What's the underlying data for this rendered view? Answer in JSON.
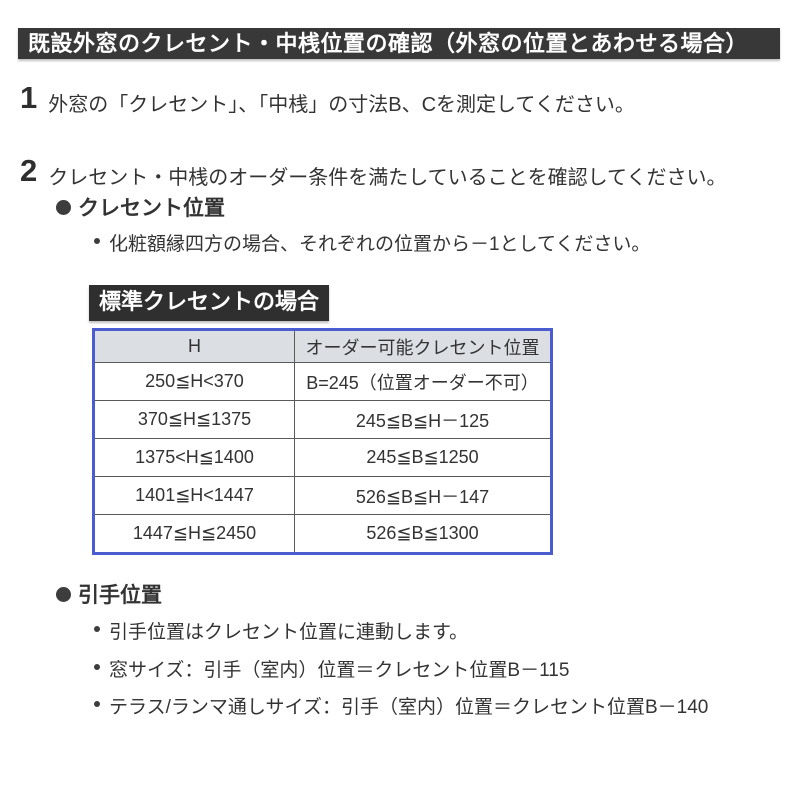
{
  "header": {
    "title": "既設外窓のクレセント・中桟位置の確認（外窓の位置とあわせる場合）"
  },
  "steps": [
    {
      "number": "1",
      "text": "外窓の「クレセント」、「中桟」の寸法B、Cを測定してください。"
    },
    {
      "number": "2",
      "text": "クレセント・中桟のオーダー条件を満たしていることを確認してください。"
    }
  ],
  "crescent": {
    "title": "クレセント位置",
    "note": "化粧額縁四方の場合、それぞれの位置から－1としてください。",
    "table_label": "標準クレセントの場合",
    "table": {
      "headers": [
        "H",
        "オーダー可能クレセント位置"
      ],
      "rows": [
        [
          "250≦H<370",
          "B=245（位置オーダー不可）"
        ],
        [
          "370≦H≦1375",
          "245≦B≦H－125"
        ],
        [
          "1375<H≦1400",
          "245≦B≦1250"
        ],
        [
          "1401≦H<1447",
          "526≦B≦H－147"
        ],
        [
          "1447≦H≦2450",
          "526≦B≦1300"
        ]
      ]
    }
  },
  "handle": {
    "title": "引手位置",
    "notes": [
      "引手位置はクレセント位置に連動します。",
      "窓サイズ：引手（室内）位置＝クレセント位置B－115",
      "テラス/ランマ通しサイズ：引手（室内）位置＝クレセント位置B－140"
    ]
  },
  "colors": {
    "header_bg": "#383838",
    "label_bg": "#2f2f2f",
    "table_border": "#4a5cd0",
    "table_header_bg": "#dbdfe4",
    "cell_border": "#5a5a5a",
    "text": "#333333"
  }
}
